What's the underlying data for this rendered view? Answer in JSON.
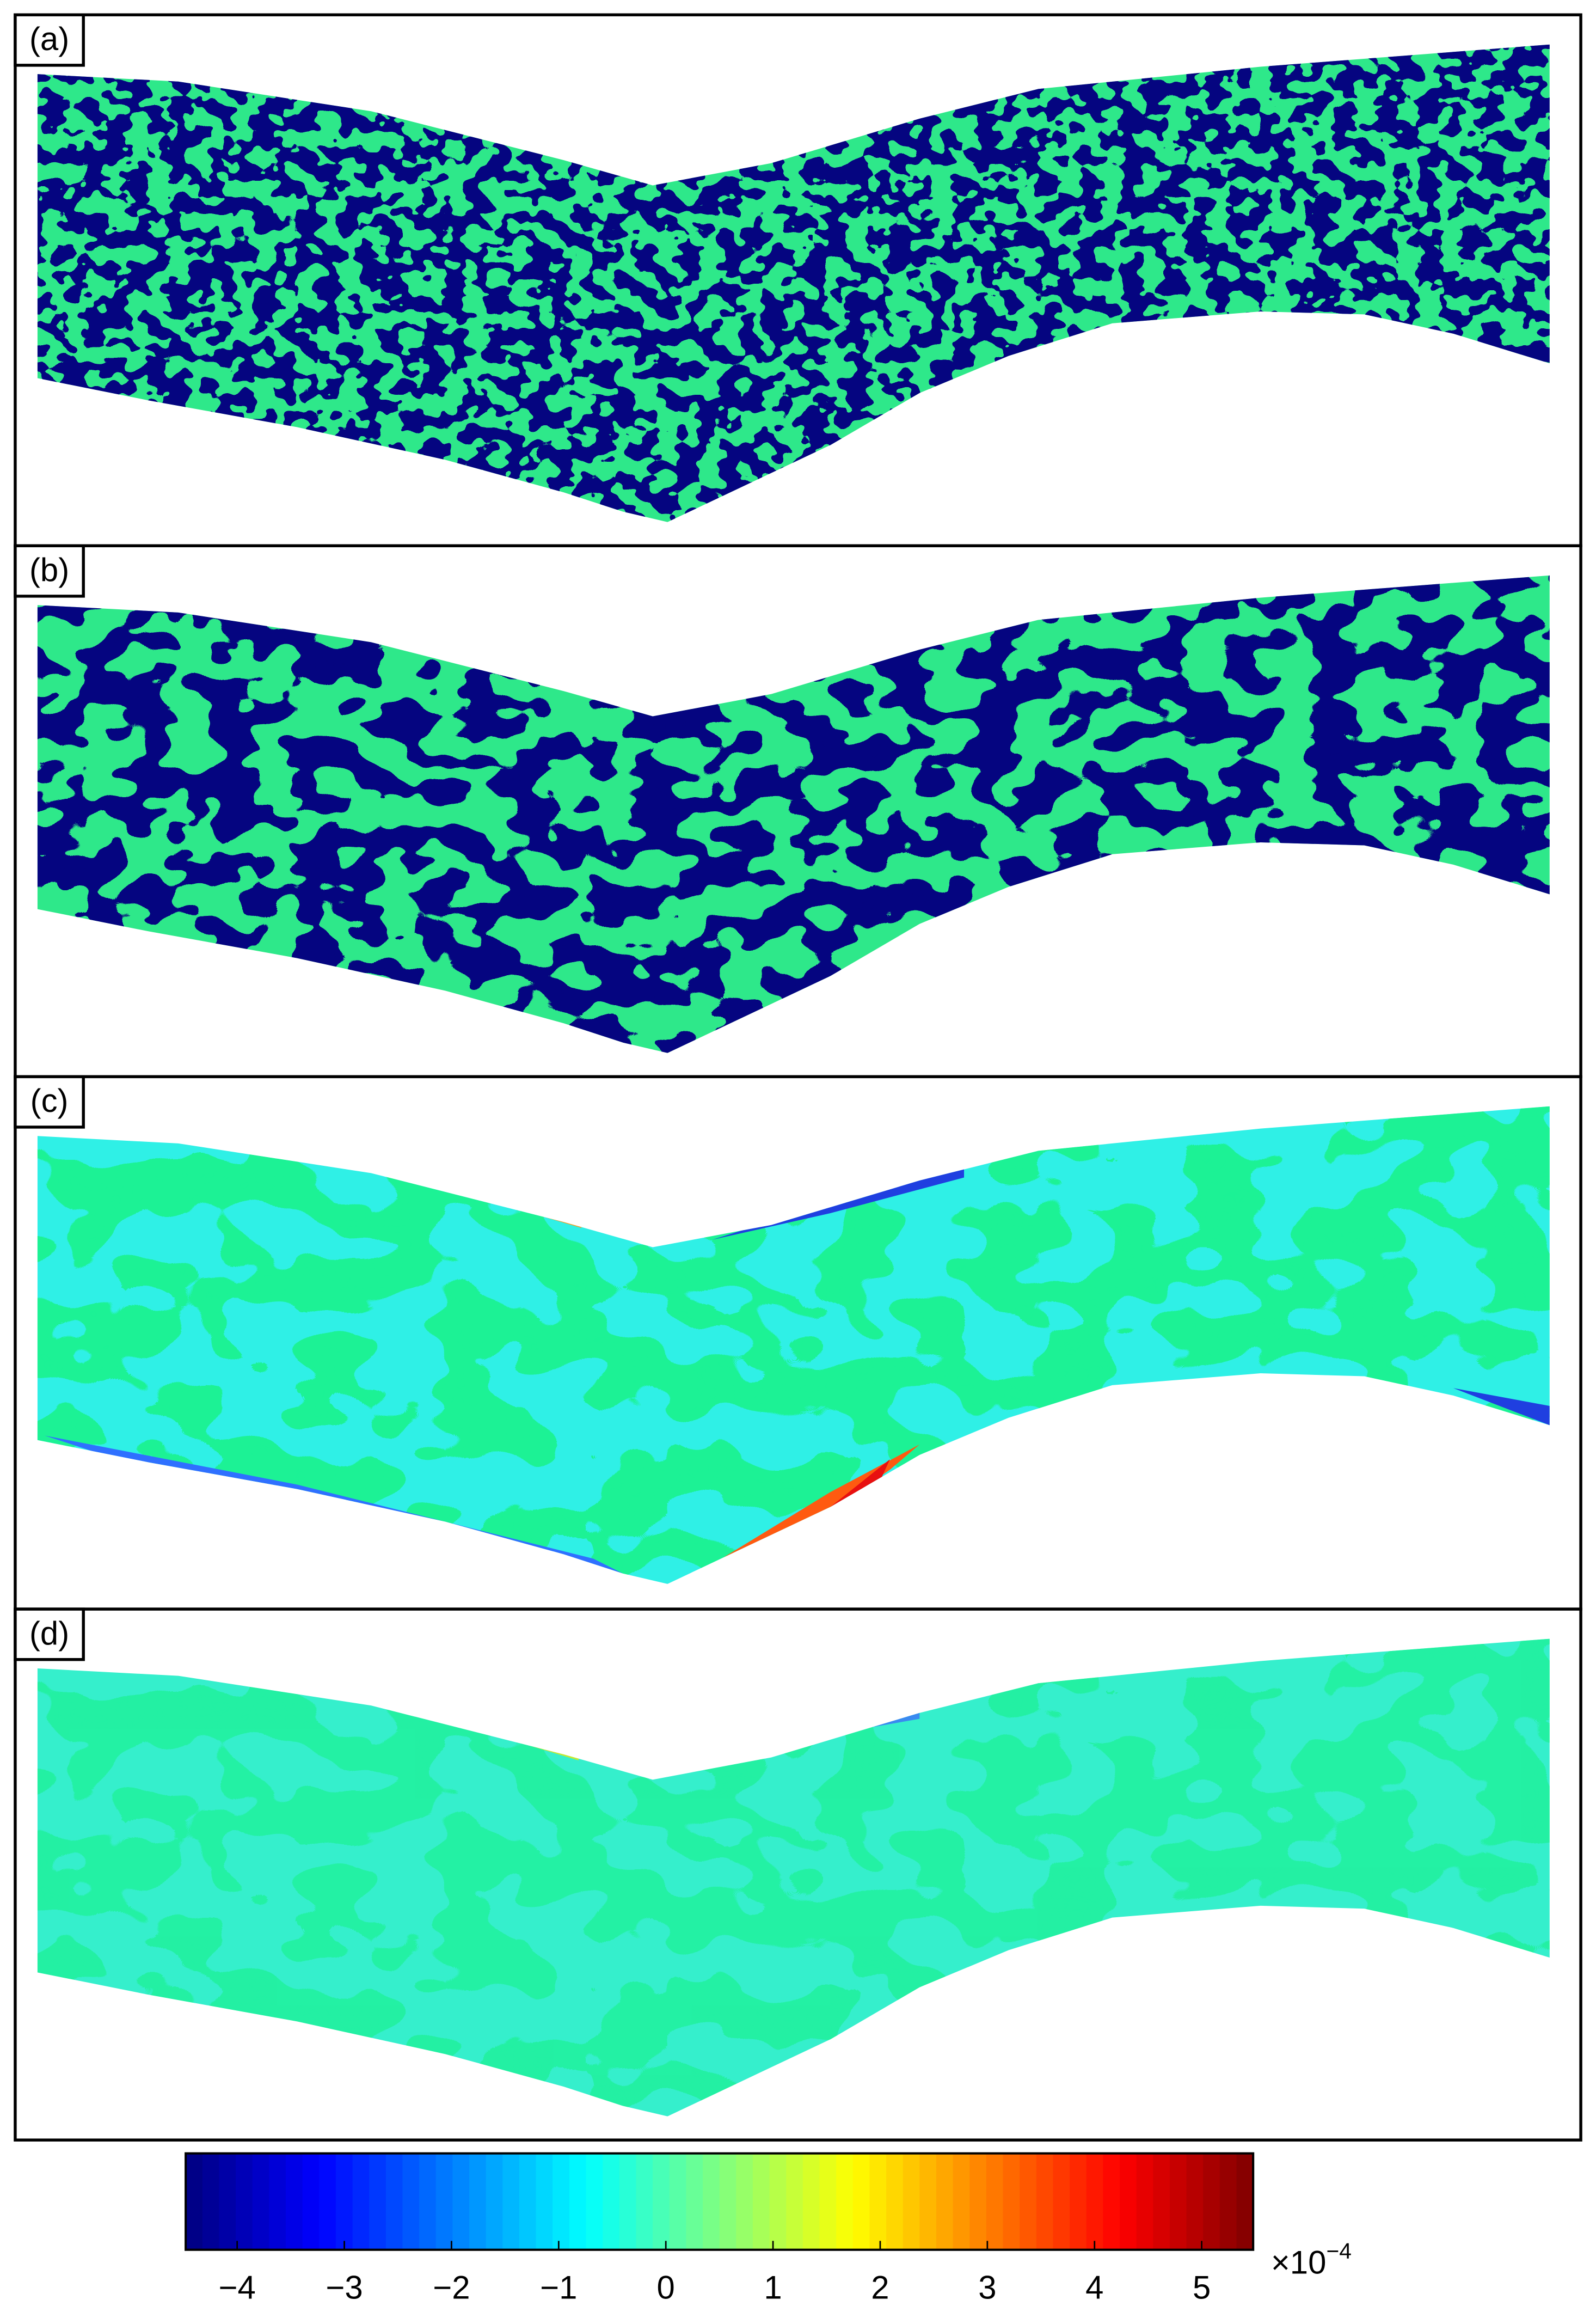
{
  "figure": {
    "panels": [
      {
        "label": "(a)"
      },
      {
        "label": "(b)"
      },
      {
        "label": "(c)"
      },
      {
        "label": "(d)"
      }
    ],
    "colorbar": {
      "colormap": "jet",
      "lim": [
        -4.48,
        5.48
      ],
      "ticks": [
        {
          "value": -4,
          "label": "−4"
        },
        {
          "value": -3,
          "label": "−3"
        },
        {
          "value": -2,
          "label": "−2"
        },
        {
          "value": -1,
          "label": "−1"
        },
        0,
        1,
        2,
        3,
        4,
        5
      ],
      "multiplier": {
        "base": "×10",
        "exponent": "−4"
      }
    }
  }
}
